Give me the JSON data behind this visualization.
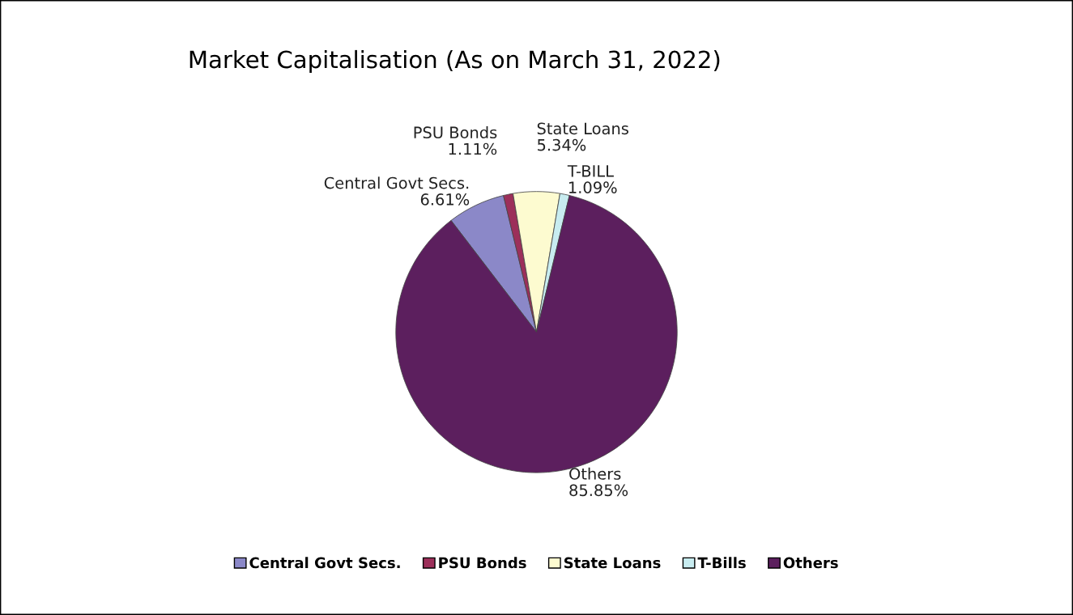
{
  "chart_data": {
    "type": "pie",
    "title": "Market Capitalisation (As on March 31, 2022)",
    "categories": [
      "Central Govt Secs.",
      "PSU Bonds",
      "State Loans",
      "T-Bills",
      "Others"
    ],
    "values": [
      6.61,
      1.11,
      5.34,
      1.09,
      85.85
    ],
    "colors": [
      "#8b88c8",
      "#9c2f5a",
      "#fdfbd0",
      "#c8ecf0",
      "#5c1f5e"
    ],
    "value_labels": [
      "Central Govt Secs.\n6.61%",
      "PSU Bonds\n1.11%",
      "State Loans\n5.34%",
      "T-BILL\n1.09%",
      "Others\n85.85%"
    ],
    "legend": "bottom"
  }
}
